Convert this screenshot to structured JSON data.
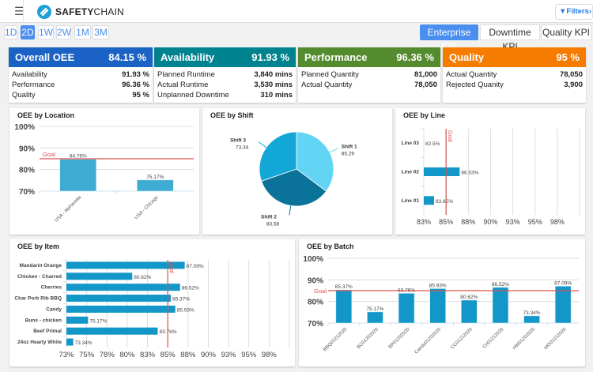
{
  "header": {
    "menu_icon": "hamburger-icon",
    "logo": "SAFETYCHAIN",
    "logo_bold": "SAFETY",
    "logo_light": "CHAIN",
    "filters_label": "Filters",
    "filters_icon": "funnel-icon"
  },
  "time_ranges": [
    {
      "label": "1D",
      "active": false
    },
    {
      "label": "2D",
      "active": true
    },
    {
      "label": "1W",
      "active": false
    },
    {
      "label": "2W",
      "active": false
    },
    {
      "label": "1M",
      "active": false
    },
    {
      "label": "3M",
      "active": false
    }
  ],
  "kpi_tabs": [
    {
      "label": "Enterprise KPI",
      "active": true
    },
    {
      "label": "Downtime KPI",
      "active": false
    },
    {
      "label": "Quality KPI",
      "active": false
    }
  ],
  "cards": [
    {
      "title": "Overall OEE",
      "value": "84.15 %",
      "color": "#1a62c4",
      "rows": [
        {
          "label": "Availability",
          "value": "91.93 %"
        },
        {
          "label": "Performance",
          "value": "96.36 %"
        },
        {
          "label": "Quality",
          "value": "95 %"
        }
      ]
    },
    {
      "title": "Availability",
      "value": "91.93 %",
      "color": "#00838f",
      "rows": [
        {
          "label": "Planned Runtime",
          "value": "3,840 mins"
        },
        {
          "label": "Actual Runtime",
          "value": "3,530 mins"
        },
        {
          "label": "Unplanned Downtime",
          "value": "310 mins"
        }
      ]
    },
    {
      "title": "Performance",
      "value": "96.36 %",
      "color": "#558b2f",
      "rows": [
        {
          "label": "Planned Quantity",
          "value": "81,000"
        },
        {
          "label": "Actual Quantity",
          "value": "78,050"
        }
      ]
    },
    {
      "title": "Quality",
      "value": "95 %",
      "color": "#f57c00",
      "rows": [
        {
          "label": "Actual Quantity",
          "value": "78,050"
        },
        {
          "label": "Rejected Quanity",
          "value": "3,900"
        }
      ]
    }
  ],
  "chart_data": [
    {
      "id": "location",
      "type": "bar",
      "title": "OEE by Location",
      "categories": [
        "USA - Alpharetta",
        "USA - Chicago"
      ],
      "values": [
        84.76,
        75.17
      ],
      "value_labels": [
        "84.76%",
        "75.17%"
      ],
      "ylim": [
        70,
        100
      ],
      "yticks": [
        "70%",
        "80%",
        "90%",
        "100%"
      ],
      "goal": 85,
      "goal_label": "Goal",
      "color": "#3eabd2"
    },
    {
      "id": "shift",
      "type": "pie",
      "title": "OEE by Shift",
      "categories": [
        "Shift 1",
        "Shift 2",
        "Shift 3"
      ],
      "values": [
        85.29,
        83.58,
        73.34
      ],
      "value_labels": [
        "85.29",
        "83.58",
        "73.34"
      ],
      "colors": [
        "#62d4f4",
        "#0b7399",
        "#13a7d8"
      ]
    },
    {
      "id": "line",
      "type": "hbar",
      "title": "OEE by Line",
      "categories": [
        "Line 03",
        "Line 02",
        "Line 01"
      ],
      "values": [
        82.5,
        86.53,
        83.65
      ],
      "value_labels": [
        "82.5%",
        "86.53%",
        "83.65%"
      ],
      "xlim": [
        82.5,
        100
      ],
      "xticks": [
        "83%",
        "85%",
        "88%",
        "90%",
        "93%",
        "95%",
        "98%"
      ],
      "goal": 85,
      "goal_label": "Goal",
      "color": "#1396c8"
    },
    {
      "id": "item",
      "type": "hbar",
      "title": "OEE by Item",
      "categories": [
        "Mandarin Orange",
        "Chicken - Charred",
        "Cherries",
        "Char Pork Rib BBQ",
        "Candy",
        "Buns - chicken",
        "Beef Primal",
        "24oz Hearty White"
      ],
      "values": [
        87.09,
        80.62,
        86.52,
        85.37,
        85.93,
        75.17,
        83.76,
        73.34
      ],
      "value_labels": [
        "87.09%",
        "80.62%",
        "86.52%",
        "85.37%",
        "85.93%",
        "75.17%",
        "83.76%",
        "73.34%"
      ],
      "xlim": [
        72.5,
        100
      ],
      "xticks": [
        "73%",
        "75%",
        "78%",
        "80%",
        "83%",
        "85%",
        "88%",
        "90%",
        "93%",
        "95%",
        "98%"
      ],
      "goal": 85,
      "goal_label": "Goal",
      "color": "#1396c8"
    },
    {
      "id": "batch",
      "type": "bar",
      "title": "OEE by Batch",
      "categories": [
        "BBQ01212020",
        "BC01202020",
        "BP01202020",
        "Candy01202020",
        "CC01212020",
        "Ch01212020",
        "HW01202020",
        "MO01212020"
      ],
      "values": [
        85.37,
        75.17,
        83.76,
        85.93,
        80.62,
        86.52,
        73.34,
        87.09
      ],
      "value_labels": [
        "85.37%",
        "75.17%",
        "83.76%",
        "85.93%",
        "80.62%",
        "86.52%",
        "73.34%",
        "87.09%"
      ],
      "ylim": [
        70,
        100
      ],
      "yticks": [
        "70%",
        "80%",
        "90%",
        "100%"
      ],
      "goal": 85,
      "goal_label": "Goal",
      "color": "#1396c8"
    }
  ]
}
